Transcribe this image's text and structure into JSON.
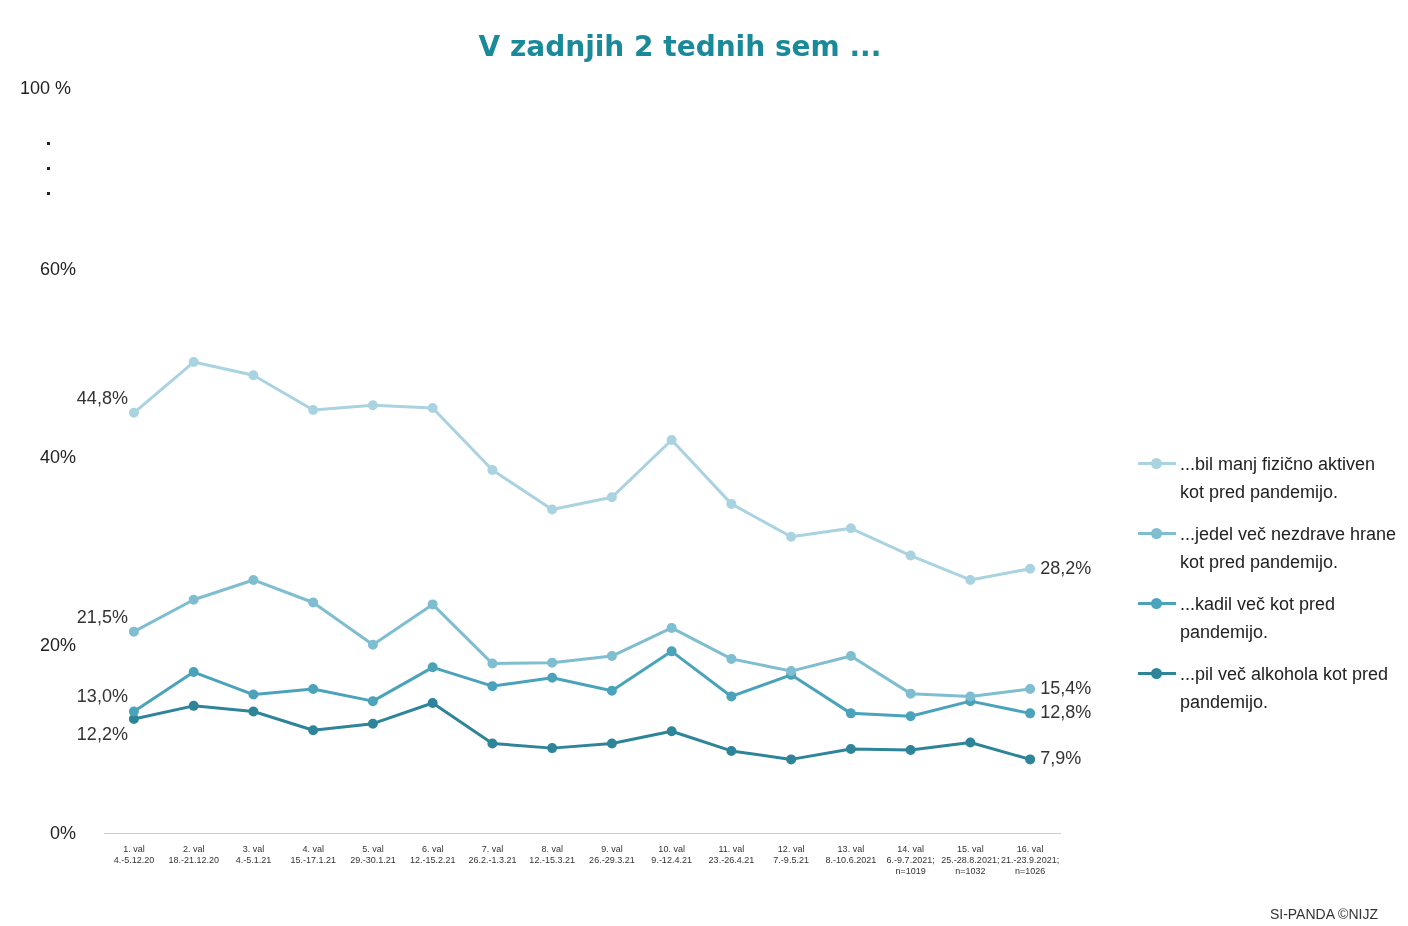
{
  "chart_data": {
    "type": "line",
    "title": "V zadnjih 2 tednih sem ...",
    "categories": [
      "1. val\n4.-5.12.20",
      "2. val\n18.-21.12.20",
      "3. val\n4.-5.1.21",
      "4. val\n15.-17.1.21",
      "5. val\n29.-30.1.21",
      "6. val\n12.-15.2.21",
      "7. val\n26.2.-1.3.21",
      "8. val\n12.-15.3.21",
      "9. val\n26.-29.3.21",
      "10. val\n9.-12.4.21",
      "11. val\n23.-26.4.21",
      "12. val\n7.-9.5.21",
      "13. val\n8.-10.6.2021",
      "14. val\n6.-9.7.2021;\nn=1019",
      "15. val\n25.-28.8.2021;\nn=1032",
      "16. val\n21.-23.9.2021;\nn=1026"
    ],
    "series": [
      {
        "name": "...bil manj fizično aktiven kot pred pandemijo.",
        "color": "#a9d3e0",
        "values": [
          44.8,
          50.2,
          48.8,
          45.1,
          45.6,
          45.3,
          38.7,
          34.5,
          35.8,
          41.9,
          35.1,
          31.6,
          32.5,
          29.6,
          27.0,
          28.2
        ],
        "value_labels": [
          "44,8%",
          null,
          null,
          null,
          null,
          null,
          null,
          null,
          null,
          null,
          null,
          null,
          null,
          null,
          null,
          "28,2%"
        ]
      },
      {
        "name": "...jedel več nezdrave hrane kot pred pandemijo.",
        "color": "#7fbdd0",
        "values": [
          21.5,
          24.9,
          27.0,
          24.6,
          20.1,
          24.4,
          18.1,
          18.2,
          18.9,
          21.9,
          18.6,
          17.3,
          18.9,
          14.9,
          14.6,
          15.4
        ],
        "value_labels": [
          "21,5%",
          null,
          null,
          null,
          null,
          null,
          null,
          null,
          null,
          null,
          null,
          null,
          null,
          null,
          null,
          "15,4%"
        ]
      },
      {
        "name": "...kadil več kot pred pandemijo.",
        "color": "#4aa3bb",
        "values": [
          13.0,
          17.2,
          14.8,
          15.4,
          14.1,
          17.7,
          15.7,
          16.6,
          15.2,
          19.4,
          14.6,
          16.9,
          12.8,
          12.5,
          14.1,
          12.8
        ],
        "value_labels": [
          "13,0%",
          null,
          null,
          null,
          null,
          null,
          null,
          null,
          null,
          null,
          null,
          null,
          null,
          null,
          null,
          "12,8%"
        ]
      },
      {
        "name": "...pil več alkohola kot pred pandemijo.",
        "color": "#2e8499",
        "values": [
          12.2,
          13.6,
          13.0,
          11.0,
          11.7,
          13.9,
          9.6,
          9.1,
          9.6,
          10.9,
          8.8,
          7.9,
          9.0,
          8.9,
          9.7,
          7.9
        ],
        "value_labels": [
          "12,2%",
          null,
          null,
          null,
          null,
          null,
          null,
          null,
          null,
          null,
          null,
          null,
          null,
          null,
          null,
          "7,9%"
        ]
      }
    ],
    "ylim": [
      0,
      60
    ],
    "yticks": [
      {
        "value": 0,
        "label": "0%"
      },
      {
        "value": 20,
        "label": "20%"
      },
      {
        "value": 40,
        "label": "40%"
      },
      {
        "value": 60,
        "label": "60%"
      }
    ],
    "grid": false,
    "legend": "right",
    "marker": "circle",
    "line_style": "solid",
    "annotations": [
      "100 %",
      "SI-PANDA ©NIJZ"
    ]
  }
}
